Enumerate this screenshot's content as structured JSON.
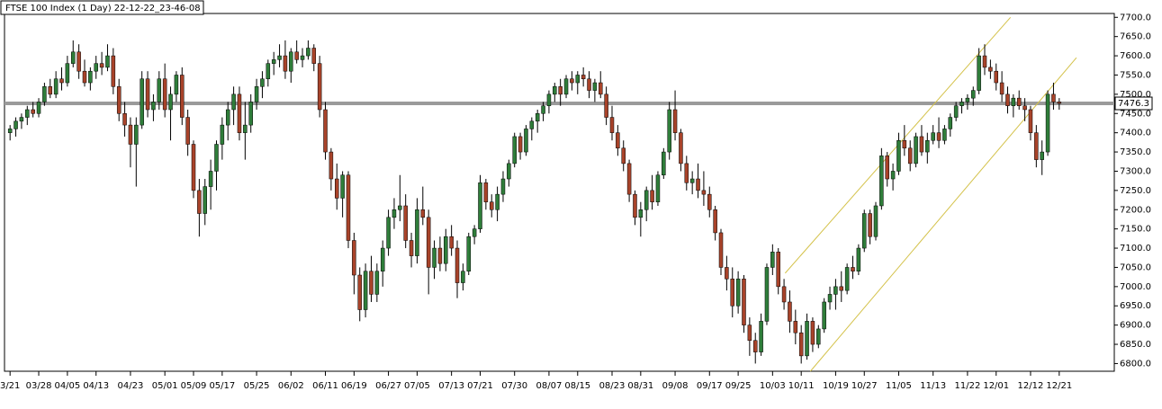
{
  "chart_data": {
    "type": "candlestick",
    "title": "FTSE 100 Index (1 Day) 22-12-22_23-46-08",
    "colors": {
      "up": "#2f7d3a",
      "down": "#a8432a",
      "wick": "#000000",
      "price_line": "#9a9a9a",
      "trendline": "#d4c24a"
    },
    "last_price": 7476.3,
    "ylim": [
      6780,
      7710
    ],
    "yticks": [
      {
        "value": 6800,
        "label": "6800.0"
      },
      {
        "value": 6850,
        "label": "6850.0"
      },
      {
        "value": 6900,
        "label": "6900.0"
      },
      {
        "value": 6950,
        "label": "6950.0"
      },
      {
        "value": 7000,
        "label": "7000.0"
      },
      {
        "value": 7050,
        "label": "7050.0"
      },
      {
        "value": 7100,
        "label": "7100.0"
      },
      {
        "value": 7150,
        "label": "7150.0"
      },
      {
        "value": 7200,
        "label": "7200.0"
      },
      {
        "value": 7250,
        "label": "7250.0"
      },
      {
        "value": 7300,
        "label": "7300.0"
      },
      {
        "value": 7350,
        "label": "7350.0"
      },
      {
        "value": 7400,
        "label": "7400.0"
      },
      {
        "value": 7450,
        "label": "7450.0"
      },
      {
        "value": 7500,
        "label": "7500.0"
      },
      {
        "value": 7550,
        "label": "7550.0"
      },
      {
        "value": 7600,
        "label": "7600.0"
      },
      {
        "value": 7650,
        "label": "7650.0"
      },
      {
        "value": 7700,
        "label": "7700.0"
      }
    ],
    "trendlines": [
      {
        "x": [
          135.2,
          174.5
        ],
        "y": [
          7035,
          7700
        ]
      },
      {
        "x": [
          139.6,
          186
        ],
        "y": [
          6780,
          7595
        ]
      }
    ],
    "categories": [
      "3/21",
      null,
      null,
      null,
      null,
      "03/28",
      null,
      null,
      null,
      null,
      "04/05",
      null,
      null,
      null,
      null,
      "04/13",
      null,
      null,
      null,
      null,
      null,
      "04/23",
      null,
      null,
      null,
      null,
      null,
      "05/01",
      null,
      null,
      null,
      null,
      "05/09",
      null,
      null,
      null,
      null,
      "05/17",
      null,
      null,
      null,
      null,
      null,
      "05/25",
      null,
      null,
      null,
      null,
      null,
      "06/02",
      null,
      null,
      null,
      null,
      null,
      "06/11",
      null,
      null,
      null,
      null,
      "06/19",
      null,
      null,
      null,
      null,
      null,
      "06/27",
      null,
      null,
      null,
      null,
      "07/05",
      null,
      null,
      null,
      null,
      null,
      "07/13",
      null,
      null,
      null,
      null,
      "07/21",
      null,
      null,
      null,
      null,
      null,
      "07/30",
      null,
      null,
      null,
      null,
      null,
      "08/07",
      null,
      null,
      null,
      null,
      "08/15",
      null,
      null,
      null,
      null,
      null,
      "08/23",
      null,
      null,
      null,
      null,
      "08/31",
      null,
      null,
      null,
      null,
      null,
      "09/08",
      null,
      null,
      null,
      null,
      null,
      "09/17",
      null,
      null,
      null,
      null,
      "09/25",
      null,
      null,
      null,
      null,
      null,
      "10/03",
      null,
      null,
      null,
      null,
      "10/11",
      null,
      null,
      null,
      null,
      null,
      "10/19",
      null,
      null,
      null,
      null,
      "10/27",
      null,
      null,
      null,
      null,
      null,
      "11/05",
      null,
      null,
      null,
      null,
      null,
      "11/13",
      null,
      null,
      null,
      null,
      null,
      "11/22",
      null,
      null,
      null,
      null,
      "12/01",
      null,
      null,
      null,
      null,
      null,
      "12/12",
      null,
      null,
      null,
      null,
      "12/21"
    ],
    "ohlc": [
      [
        7400,
        7420,
        7380,
        7410
      ],
      [
        7410,
        7440,
        7390,
        7430
      ],
      [
        7430,
        7450,
        7410,
        7440
      ],
      [
        7440,
        7470,
        7420,
        7460
      ],
      [
        7460,
        7480,
        7440,
        7450
      ],
      [
        7450,
        7490,
        7440,
        7480
      ],
      [
        7480,
        7530,
        7470,
        7520
      ],
      [
        7520,
        7540,
        7490,
        7500
      ],
      [
        7500,
        7560,
        7490,
        7540
      ],
      [
        7540,
        7570,
        7510,
        7530
      ],
      [
        7530,
        7600,
        7520,
        7580
      ],
      [
        7580,
        7640,
        7570,
        7610
      ],
      [
        7610,
        7630,
        7540,
        7560
      ],
      [
        7560,
        7590,
        7520,
        7530
      ],
      [
        7530,
        7570,
        7510,
        7560
      ],
      [
        7560,
        7600,
        7540,
        7580
      ],
      [
        7580,
        7610,
        7550,
        7570
      ],
      [
        7570,
        7630,
        7560,
        7600
      ],
      [
        7600,
        7620,
        7500,
        7520
      ],
      [
        7520,
        7540,
        7430,
        7450
      ],
      [
        7450,
        7480,
        7390,
        7420
      ],
      [
        7420,
        7440,
        7310,
        7370
      ],
      [
        7370,
        7440,
        7260,
        7420
      ],
      [
        7420,
        7560,
        7410,
        7540
      ],
      [
        7540,
        7560,
        7440,
        7460
      ],
      [
        7460,
        7500,
        7430,
        7480
      ],
      [
        7480,
        7560,
        7460,
        7540
      ],
      [
        7540,
        7580,
        7440,
        7460
      ],
      [
        7460,
        7520,
        7380,
        7500
      ],
      [
        7500,
        7560,
        7480,
        7550
      ],
      [
        7550,
        7570,
        7420,
        7440
      ],
      [
        7440,
        7460,
        7340,
        7370
      ],
      [
        7370,
        7380,
        7230,
        7250
      ],
      [
        7250,
        7280,
        7130,
        7190
      ],
      [
        7190,
        7280,
        7160,
        7260
      ],
      [
        7260,
        7330,
        7200,
        7300
      ],
      [
        7300,
        7380,
        7250,
        7370
      ],
      [
        7370,
        7440,
        7330,
        7420
      ],
      [
        7420,
        7480,
        7380,
        7460
      ],
      [
        7460,
        7520,
        7420,
        7500
      ],
      [
        7500,
        7520,
        7380,
        7400
      ],
      [
        7400,
        7480,
        7330,
        7420
      ],
      [
        7420,
        7500,
        7400,
        7480
      ],
      [
        7480,
        7540,
        7460,
        7520
      ],
      [
        7520,
        7560,
        7490,
        7540
      ],
      [
        7540,
        7590,
        7520,
        7580
      ],
      [
        7580,
        7610,
        7550,
        7590
      ],
      [
        7590,
        7630,
        7570,
        7600
      ],
      [
        7600,
        7640,
        7540,
        7560
      ],
      [
        7560,
        7620,
        7530,
        7610
      ],
      [
        7610,
        7640,
        7580,
        7590
      ],
      [
        7590,
        7620,
        7570,
        7600
      ],
      [
        7600,
        7640,
        7590,
        7620
      ],
      [
        7620,
        7630,
        7560,
        7580
      ],
      [
        7580,
        7600,
        7440,
        7460
      ],
      [
        7460,
        7480,
        7330,
        7350
      ],
      [
        7350,
        7360,
        7250,
        7280
      ],
      [
        7280,
        7320,
        7200,
        7230
      ],
      [
        7230,
        7300,
        7180,
        7290
      ],
      [
        7290,
        7300,
        7100,
        7120
      ],
      [
        7120,
        7140,
        6980,
        7030
      ],
      [
        7030,
        7050,
        6910,
        6940
      ],
      [
        6940,
        7060,
        6920,
        7040
      ],
      [
        7040,
        7080,
        6960,
        6980
      ],
      [
        6980,
        7060,
        6960,
        7040
      ],
      [
        7040,
        7120,
        7000,
        7100
      ],
      [
        7100,
        7200,
        7080,
        7180
      ],
      [
        7180,
        7230,
        7150,
        7200
      ],
      [
        7200,
        7290,
        7170,
        7210
      ],
      [
        7210,
        7240,
        7100,
        7120
      ],
      [
        7120,
        7140,
        7050,
        7080
      ],
      [
        7080,
        7230,
        7060,
        7200
      ],
      [
        7200,
        7260,
        7160,
        7180
      ],
      [
        7180,
        7200,
        6980,
        7050
      ],
      [
        7050,
        7120,
        7020,
        7100
      ],
      [
        7100,
        7130,
        7040,
        7060
      ],
      [
        7060,
        7150,
        7040,
        7130
      ],
      [
        7130,
        7160,
        7080,
        7100
      ],
      [
        7100,
        7120,
        6970,
        7010
      ],
      [
        7010,
        7060,
        6990,
        7040
      ],
      [
        7040,
        7140,
        7030,
        7130
      ],
      [
        7130,
        7160,
        7110,
        7150
      ],
      [
        7150,
        7290,
        7140,
        7270
      ],
      [
        7270,
        7280,
        7200,
        7220
      ],
      [
        7220,
        7240,
        7180,
        7200
      ],
      [
        7200,
        7260,
        7170,
        7240
      ],
      [
        7240,
        7300,
        7220,
        7280
      ],
      [
        7280,
        7330,
        7260,
        7320
      ],
      [
        7320,
        7400,
        7310,
        7390
      ],
      [
        7390,
        7400,
        7330,
        7350
      ],
      [
        7350,
        7420,
        7340,
        7410
      ],
      [
        7410,
        7440,
        7380,
        7430
      ],
      [
        7430,
        7460,
        7400,
        7450
      ],
      [
        7450,
        7480,
        7430,
        7470
      ],
      [
        7470,
        7510,
        7450,
        7500
      ],
      [
        7500,
        7530,
        7480,
        7520
      ],
      [
        7520,
        7540,
        7470,
        7500
      ],
      [
        7500,
        7550,
        7490,
        7540
      ],
      [
        7540,
        7560,
        7510,
        7530
      ],
      [
        7530,
        7560,
        7500,
        7550
      ],
      [
        7550,
        7570,
        7520,
        7540
      ],
      [
        7540,
        7560,
        7490,
        7510
      ],
      [
        7510,
        7540,
        7480,
        7530
      ],
      [
        7530,
        7560,
        7490,
        7500
      ],
      [
        7500,
        7520,
        7420,
        7440
      ],
      [
        7440,
        7470,
        7380,
        7400
      ],
      [
        7400,
        7420,
        7340,
        7360
      ],
      [
        7360,
        7380,
        7300,
        7320
      ],
      [
        7320,
        7330,
        7220,
        7240
      ],
      [
        7240,
        7250,
        7160,
        7180
      ],
      [
        7180,
        7220,
        7130,
        7200
      ],
      [
        7200,
        7260,
        7170,
        7250
      ],
      [
        7250,
        7290,
        7200,
        7220
      ],
      [
        7220,
        7300,
        7210,
        7290
      ],
      [
        7290,
        7360,
        7280,
        7350
      ],
      [
        7350,
        7480,
        7330,
        7460
      ],
      [
        7460,
        7510,
        7380,
        7400
      ],
      [
        7400,
        7410,
        7300,
        7320
      ],
      [
        7320,
        7340,
        7250,
        7270
      ],
      [
        7270,
        7300,
        7240,
        7280
      ],
      [
        7280,
        7320,
        7230,
        7250
      ],
      [
        7250,
        7300,
        7210,
        7240
      ],
      [
        7240,
        7260,
        7180,
        7200
      ],
      [
        7200,
        7210,
        7120,
        7140
      ],
      [
        7140,
        7150,
        7030,
        7050
      ],
      [
        7050,
        7080,
        6990,
        7020
      ],
      [
        7020,
        7050,
        6920,
        6950
      ],
      [
        6950,
        7040,
        6930,
        7020
      ],
      [
        7020,
        7030,
        6880,
        6900
      ],
      [
        6900,
        6920,
        6820,
        6860
      ],
      [
        6860,
        6880,
        6800,
        6830
      ],
      [
        6830,
        6930,
        6820,
        6910
      ],
      [
        6910,
        7060,
        6900,
        7050
      ],
      [
        7050,
        7110,
        7030,
        7090
      ],
      [
        7090,
        7100,
        6980,
        7000
      ],
      [
        7000,
        7020,
        6940,
        6960
      ],
      [
        6960,
        6990,
        6880,
        6910
      ],
      [
        6910,
        6940,
        6850,
        6880
      ],
      [
        6880,
        6900,
        6800,
        6820
      ],
      [
        6820,
        6930,
        6810,
        6910
      ],
      [
        6910,
        6920,
        6830,
        6850
      ],
      [
        6850,
        6900,
        6840,
        6890
      ],
      [
        6890,
        6970,
        6880,
        6960
      ],
      [
        6960,
        7000,
        6940,
        6980
      ],
      [
        6980,
        7020,
        6940,
        7000
      ],
      [
        7000,
        7040,
        6960,
        6990
      ],
      [
        6990,
        7060,
        6980,
        7050
      ],
      [
        7050,
        7080,
        7020,
        7040
      ],
      [
        7040,
        7110,
        7030,
        7100
      ],
      [
        7100,
        7200,
        7090,
        7190
      ],
      [
        7190,
        7200,
        7110,
        7130
      ],
      [
        7130,
        7220,
        7120,
        7210
      ],
      [
        7210,
        7360,
        7200,
        7340
      ],
      [
        7340,
        7350,
        7260,
        7280
      ],
      [
        7280,
        7320,
        7250,
        7300
      ],
      [
        7300,
        7400,
        7290,
        7380
      ],
      [
        7380,
        7420,
        7340,
        7360
      ],
      [
        7360,
        7380,
        7300,
        7320
      ],
      [
        7320,
        7400,
        7310,
        7390
      ],
      [
        7390,
        7420,
        7340,
        7350
      ],
      [
        7350,
        7400,
        7320,
        7380
      ],
      [
        7380,
        7420,
        7370,
        7400
      ],
      [
        7400,
        7440,
        7360,
        7380
      ],
      [
        7380,
        7420,
        7370,
        7410
      ],
      [
        7410,
        7450,
        7390,
        7440
      ],
      [
        7440,
        7480,
        7430,
        7470
      ],
      [
        7470,
        7490,
        7450,
        7480
      ],
      [
        7480,
        7500,
        7460,
        7490
      ],
      [
        7490,
        7520,
        7470,
        7510
      ],
      [
        7510,
        7620,
        7500,
        7600
      ],
      [
        7600,
        7630,
        7550,
        7570
      ],
      [
        7570,
        7590,
        7540,
        7560
      ],
      [
        7560,
        7580,
        7510,
        7530
      ],
      [
        7530,
        7560,
        7480,
        7500
      ],
      [
        7500,
        7520,
        7450,
        7470
      ],
      [
        7470,
        7500,
        7440,
        7490
      ],
      [
        7490,
        7510,
        7460,
        7470
      ],
      [
        7470,
        7490,
        7430,
        7460
      ],
      [
        7460,
        7470,
        7380,
        7400
      ],
      [
        7400,
        7420,
        7310,
        7330
      ],
      [
        7330,
        7380,
        7290,
        7350
      ],
      [
        7350,
        7510,
        7340,
        7500
      ],
      [
        7500,
        7530,
        7460,
        7480
      ],
      [
        7480,
        7490,
        7460,
        7476.3
      ]
    ]
  }
}
